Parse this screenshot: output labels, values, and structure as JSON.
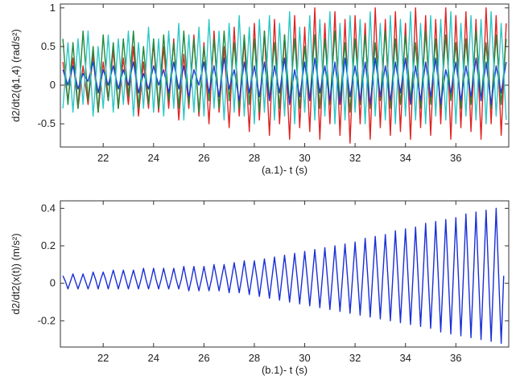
{
  "chart_data": [
    {
      "type": "line",
      "xlabel": "(a.1)- t (s)",
      "ylabel": "d2/dt2(ϕ1,4) (rad/s²)",
      "xlim": [
        20.3,
        38.1
      ],
      "ylim": [
        -0.8,
        1.05
      ],
      "xticks": [
        22,
        24,
        26,
        28,
        30,
        32,
        34,
        36
      ],
      "yticks": [
        -0.5,
        0,
        0.5,
        1
      ],
      "x": [
        20.4,
        20.6,
        20.8,
        21.0,
        21.2,
        21.4,
        21.6,
        21.8,
        22.0,
        22.2,
        22.4,
        22.6,
        22.8,
        23.0,
        23.2,
        23.4,
        23.6,
        23.8,
        24.0,
        24.2,
        24.4,
        24.6,
        24.8,
        25.0,
        25.2,
        25.4,
        25.6,
        25.8,
        26.0,
        26.2,
        26.4,
        26.6,
        26.8,
        27.0,
        27.2,
        27.4,
        27.6,
        27.8,
        28.0,
        28.2,
        28.4,
        28.6,
        28.8,
        29.0,
        29.2,
        29.4,
        29.6,
        29.8,
        30.0,
        30.2,
        30.4,
        30.6,
        30.8,
        31.0,
        31.2,
        31.4,
        31.6,
        31.8,
        32.0,
        32.2,
        32.4,
        32.6,
        32.8,
        33.0,
        33.2,
        33.4,
        33.6,
        33.8,
        34.0,
        34.2,
        34.4,
        34.6,
        34.8,
        35.0,
        35.2,
        35.4,
        35.6,
        35.8,
        36.0,
        36.2,
        36.4,
        36.6,
        36.8,
        37.0,
        37.2,
        37.4,
        37.6,
        37.8,
        38.0
      ],
      "series": [
        {
          "color": "#e02424",
          "values": [
            0.3,
            -0.2,
            0.35,
            -0.3,
            0.25,
            -0.25,
            0.4,
            -0.35,
            0.3,
            -0.2,
            0.45,
            -0.3,
            0.35,
            -0.25,
            0.5,
            -0.4,
            0.3,
            -0.3,
            0.55,
            -0.35,
            0.5,
            -0.3,
            0.6,
            -0.45,
            0.4,
            -0.3,
            0.65,
            -0.4,
            0.55,
            -0.5,
            0.7,
            -0.35,
            0.5,
            -0.55,
            0.75,
            -0.4,
            0.6,
            -0.6,
            0.8,
            -0.45,
            0.7,
            -0.65,
            0.85,
            -0.5,
            0.65,
            -0.7,
            0.9,
            -0.55,
            0.75,
            -0.6,
            1.0,
            -0.7,
            0.8,
            -0.5,
            0.95,
            -0.65,
            0.85,
            -0.75,
            0.9,
            -0.5,
            0.8,
            -0.7,
            1.0,
            -0.55,
            0.85,
            -0.65,
            0.95,
            -0.6,
            0.8,
            -0.7,
            1.0,
            -0.55,
            0.9,
            -0.65,
            0.85,
            -0.5,
            1.0,
            -0.7,
            0.9,
            -0.55,
            0.95,
            -0.6,
            0.85,
            -0.7,
            1.0,
            -0.5,
            0.9,
            -0.65,
            0.8
          ]
        },
        {
          "color": "#1f8a3c",
          "values": [
            0.6,
            -0.25,
            0.55,
            -0.3,
            0.7,
            -0.2,
            0.5,
            -0.35,
            0.65,
            -0.2,
            0.55,
            -0.3,
            0.6,
            -0.15,
            0.7,
            -0.3,
            0.5,
            -0.25,
            0.6,
            -0.3,
            0.65,
            -0.2,
            0.55,
            -0.3,
            0.7,
            -0.25,
            0.6,
            -0.35,
            0.5,
            -0.2,
            0.6,
            -0.3,
            0.7,
            -0.2,
            0.55,
            -0.3,
            0.65,
            -0.25,
            0.6,
            -0.35,
            0.7,
            -0.2,
            0.55,
            -0.3,
            0.65,
            -0.25,
            0.6,
            -0.3,
            0.5,
            -0.2,
            0.65,
            -0.3,
            0.6,
            -0.25,
            0.7,
            -0.2,
            0.55,
            -0.35,
            0.6,
            -0.25,
            0.65,
            -0.3,
            0.55,
            -0.2,
            0.7,
            -0.3,
            0.6,
            -0.25,
            0.65,
            -0.2,
            0.55,
            -0.3,
            0.7,
            -0.25,
            0.6,
            -0.3,
            0.65,
            -0.2,
            0.55,
            -0.3,
            0.6,
            -0.25,
            0.7,
            -0.2,
            0.55,
            -0.3,
            0.65,
            -0.25,
            0.6
          ]
        },
        {
          "color": "#1f3fd0",
          "values": [
            0.2,
            0,
            0.25,
            -0.05,
            0.15,
            0.05,
            0.3,
            -0.1,
            0.2,
            0,
            0.25,
            -0.05,
            0.2,
            0,
            0.3,
            -0.1,
            0.15,
            -0.05,
            0.25,
            0,
            0.2,
            -0.1,
            0.3,
            -0.05,
            0.25,
            -0.15,
            0.2,
            0,
            0.3,
            -0.1,
            0.25,
            -0.15,
            0.35,
            -0.05,
            0.2,
            -0.2,
            0.3,
            -0.1,
            0.25,
            -0.15,
            0.3,
            -0.2,
            0.25,
            -0.1,
            0.35,
            -0.25,
            0.2,
            -0.15,
            0.3,
            -0.2,
            0.35,
            -0.1,
            0.25,
            -0.2,
            0.3,
            -0.25,
            0.35,
            -0.15,
            0.25,
            -0.2,
            0.3,
            -0.25,
            0.35,
            -0.15,
            0.25,
            -0.2,
            0.3,
            -0.1,
            0.35,
            -0.25,
            0.25,
            -0.2,
            0.3,
            -0.15,
            0.35,
            -0.25,
            0.2,
            -0.1,
            0.3,
            -0.2,
            0.25,
            -0.15,
            0.35,
            -0.2,
            0.3,
            -0.25,
            0.25,
            -0.1,
            0.3
          ]
        },
        {
          "color": "#2ec8c8",
          "values": [
            -0.3,
            0.55,
            -0.35,
            0.6,
            -0.25,
            0.7,
            -0.4,
            0.5,
            -0.3,
            0.65,
            -0.35,
            0.6,
            -0.25,
            0.7,
            -0.4,
            0.55,
            -0.3,
            0.75,
            -0.35,
            0.6,
            -0.4,
            0.7,
            -0.3,
            0.8,
            -0.45,
            0.65,
            -0.35,
            0.75,
            -0.4,
            0.85,
            -0.3,
            0.7,
            -0.45,
            0.8,
            -0.35,
            0.9,
            -0.4,
            0.75,
            -0.5,
            0.85,
            -0.35,
            0.9,
            -0.45,
            0.8,
            -0.4,
            0.95,
            -0.5,
            0.75,
            -0.35,
            0.9,
            -0.45,
            0.85,
            -0.4,
            0.95,
            -0.5,
            0.8,
            -0.45,
            0.9,
            -0.35,
            0.85,
            -0.5,
            0.95,
            -0.4,
            0.8,
            -0.45,
            0.9,
            -0.5,
            0.85,
            -0.4,
            0.95,
            -0.45,
            0.8,
            -0.5,
            0.9,
            -0.4,
            0.85,
            -0.45,
            0.95,
            -0.5,
            0.8,
            -0.4,
            0.9,
            -0.45,
            0.85,
            -0.5,
            0.95,
            -0.4,
            0.8,
            -0.45
          ]
        }
      ]
    },
    {
      "type": "line",
      "xlabel": "(b.1)- t (s)",
      "ylabel": "d2/dt2(x(t)) (m/s²)",
      "xlim": [
        20.3,
        38.1
      ],
      "ylim": [
        -0.34,
        0.44
      ],
      "xticks": [
        22,
        24,
        26,
        28,
        30,
        32,
        34,
        36
      ],
      "yticks": [
        -0.2,
        0,
        0.2,
        0.4
      ],
      "x": [
        20.4,
        20.5,
        20.6,
        20.7,
        20.8,
        20.9,
        21.0,
        21.1,
        21.2,
        21.3,
        21.4,
        21.5,
        21.6,
        21.7,
        21.8,
        21.9,
        22.0,
        22.1,
        22.2,
        22.3,
        22.4,
        22.5,
        22.6,
        22.7,
        22.8,
        22.9,
        23.0,
        23.1,
        23.2,
        23.3,
        23.4,
        23.5,
        23.6,
        23.7,
        23.8,
        23.9,
        24.0,
        24.1,
        24.2,
        24.3,
        24.4,
        24.5,
        24.6,
        24.7,
        24.8,
        24.9,
        25.0,
        25.1,
        25.2,
        25.3,
        25.4,
        25.5,
        25.6,
        25.7,
        25.8,
        25.9,
        26.0,
        26.1,
        26.2,
        26.3,
        26.4,
        26.5,
        26.6,
        26.7,
        26.8,
        26.9,
        27.0,
        27.1,
        27.2,
        27.3,
        27.4,
        27.5,
        27.6,
        27.7,
        27.8,
        27.9,
        28.0,
        28.1,
        28.2,
        28.3,
        28.4,
        28.5,
        28.6,
        28.7,
        28.8,
        28.9,
        29.0,
        29.1,
        29.2,
        29.3,
        29.4,
        29.5,
        29.6,
        29.7,
        29.8,
        29.9,
        30.0,
        30.1,
        30.2,
        30.3,
        30.4,
        30.5,
        30.6,
        30.7,
        30.8,
        30.9,
        31.0,
        31.1,
        31.2,
        31.3,
        31.4,
        31.5,
        31.6,
        31.7,
        31.8,
        31.9,
        32.0,
        32.1,
        32.2,
        32.3,
        32.4,
        32.5,
        32.6,
        32.7,
        32.8,
        32.9,
        33.0,
        33.1,
        33.2,
        33.3,
        33.4,
        33.5,
        33.6,
        33.7,
        33.8,
        33.9,
        34.0,
        34.1,
        34.2,
        34.3,
        34.4,
        34.5,
        34.6,
        34.7,
        34.8,
        34.9,
        35.0,
        35.1,
        35.2,
        35.3,
        35.4,
        35.5,
        35.6,
        35.7,
        35.8,
        35.9,
        36.0,
        36.1,
        36.2,
        36.3,
        36.4,
        36.5,
        36.6,
        36.7,
        36.8,
        36.9,
        37.0,
        37.1,
        37.2,
        37.3,
        37.4,
        37.5,
        37.6,
        37.7,
        37.8,
        37.9
      ],
      "series": [
        {
          "color": "#1a2fd6",
          "values": [
            0.04,
            0.01,
            -0.03,
            0.01,
            0.05,
            0.01,
            -0.03,
            0.01,
            0.05,
            0.01,
            -0.03,
            0.01,
            0.06,
            0.02,
            -0.03,
            0.02,
            0.06,
            0.02,
            -0.03,
            0.02,
            0.07,
            0.02,
            -0.03,
            0.02,
            0.07,
            0.02,
            -0.03,
            0.02,
            0.07,
            0.02,
            -0.03,
            0.02,
            0.08,
            0.02,
            -0.03,
            0.02,
            0.08,
            0.02,
            -0.03,
            0.02,
            0.08,
            0.02,
            -0.03,
            0.02,
            0.08,
            0.02,
            -0.03,
            0.02,
            0.09,
            0.02,
            -0.04,
            0.02,
            0.09,
            0.02,
            -0.04,
            0.02,
            0.09,
            0.02,
            -0.04,
            0.02,
            0.1,
            0.03,
            -0.04,
            0.03,
            0.1,
            0.03,
            -0.05,
            0.03,
            0.11,
            0.03,
            -0.05,
            0.03,
            0.12,
            0.03,
            -0.06,
            0.03,
            0.12,
            0.03,
            -0.07,
            0.03,
            0.13,
            0.03,
            -0.08,
            0.03,
            0.14,
            0.03,
            -0.09,
            0.03,
            0.15,
            0.03,
            -0.1,
            0.03,
            0.16,
            0.03,
            -0.11,
            0.03,
            0.17,
            0.03,
            -0.12,
            0.03,
            0.18,
            0.03,
            -0.13,
            0.03,
            0.19,
            0.03,
            -0.14,
            0.03,
            0.2,
            0.03,
            -0.15,
            0.03,
            0.21,
            0.03,
            -0.16,
            0.03,
            0.22,
            0.03,
            -0.17,
            0.03,
            0.24,
            0.04,
            -0.18,
            0.04,
            0.25,
            0.04,
            -0.19,
            0.04,
            0.26,
            0.04,
            -0.2,
            0.04,
            0.28,
            0.04,
            -0.21,
            0.04,
            0.29,
            0.04,
            -0.22,
            0.04,
            0.3,
            0.04,
            -0.23,
            0.04,
            0.32,
            0.04,
            -0.24,
            0.04,
            0.33,
            0.04,
            -0.26,
            0.04,
            0.34,
            0.04,
            -0.27,
            0.04,
            0.35,
            0.04,
            -0.28,
            0.04,
            0.37,
            0.04,
            -0.29,
            0.04,
            0.38,
            0.04,
            -0.3,
            0.04,
            0.39,
            0.04,
            -0.31,
            0.04,
            0.4,
            0.04,
            -0.32,
            0.04
          ]
        }
      ]
    }
  ]
}
